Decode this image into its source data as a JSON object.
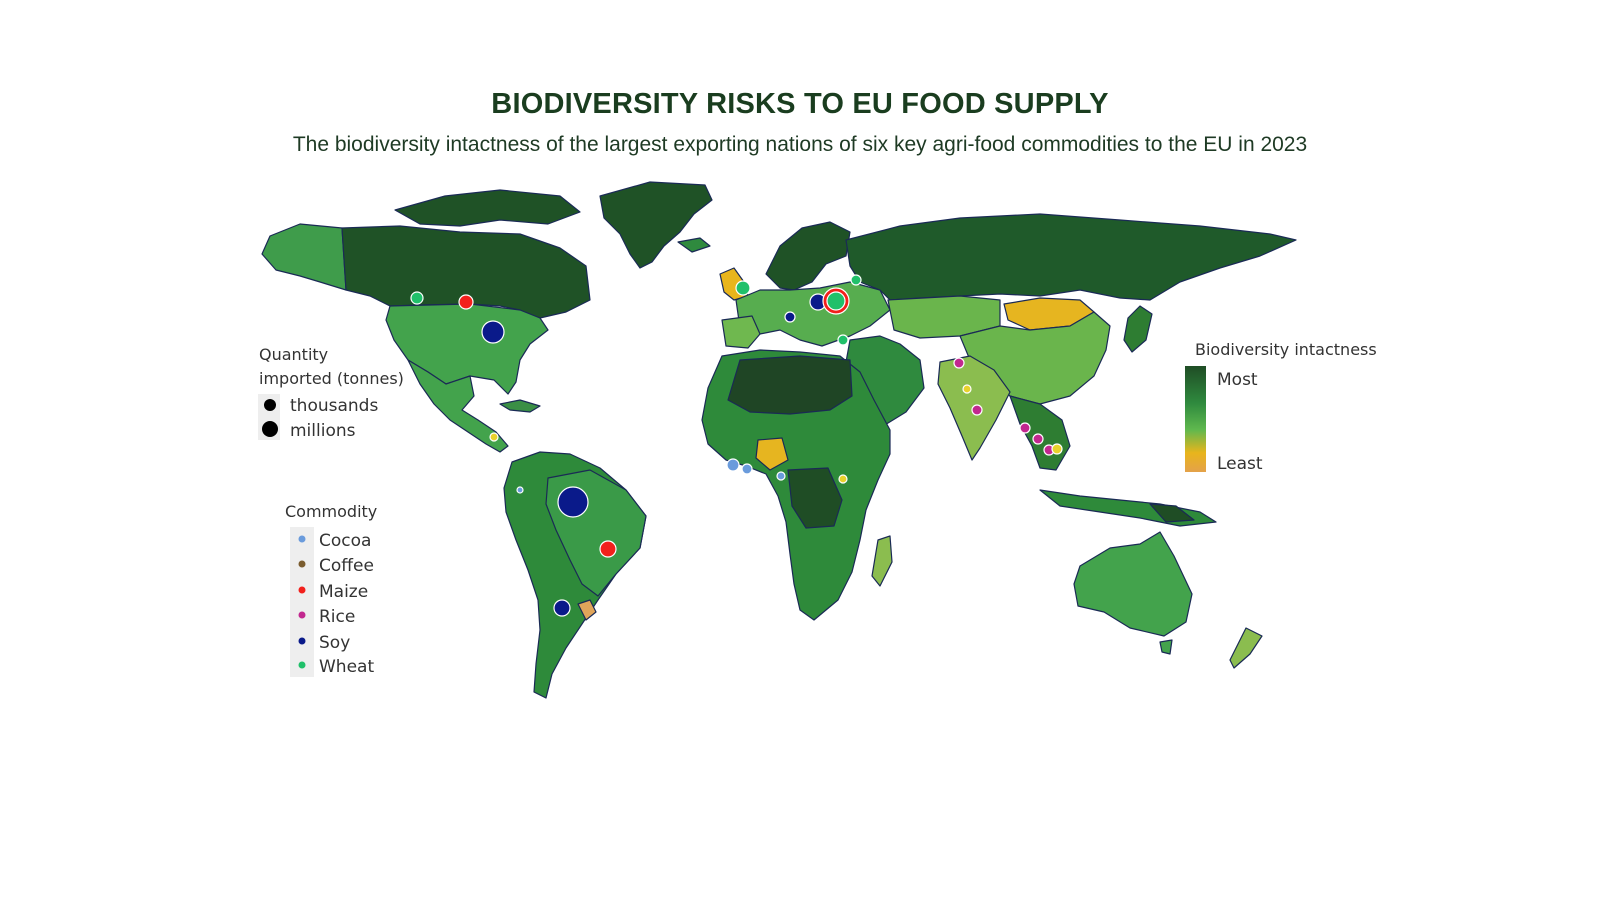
{
  "header": {
    "title": "BIODIVERSITY RISKS TO EU FOOD SUPPLY",
    "subtitle": "The biodiversity intactness of the largest exporting nations of six key agri-food commodities to the EU in 2023"
  },
  "size_legend": {
    "title_line1": "Quantity",
    "title_line2": "imported (tonnes)",
    "items": [
      "thousands",
      "millions"
    ]
  },
  "commodity_legend": {
    "title": "Commodity",
    "items": [
      {
        "label": "Cocoa",
        "color": "#6a9bdc"
      },
      {
        "label": "Coffee",
        "color": "#7a5c2e"
      },
      {
        "label": "Maize",
        "color": "#f2201c"
      },
      {
        "label": "Rice",
        "color": "#c2288f"
      },
      {
        "label": "Soy",
        "color": "#0a1a8a"
      },
      {
        "label": "Wheat",
        "color": "#20c06a"
      }
    ]
  },
  "color_legend": {
    "title": "Biodiversity intactness",
    "top_label": "Most",
    "bottom_label": "Least",
    "gradient": [
      "#1f4d25",
      "#2f8a3e",
      "#5fb84e",
      "#e8b51c",
      "#e4a24a"
    ]
  },
  "colors": {
    "ocean": "#ffffff",
    "border": "#1a2a55",
    "most": "#1f4d25",
    "high": "#2e7d32",
    "mid": "#43a047",
    "low": "#8bbd4f",
    "least": "#e6b520"
  }
}
